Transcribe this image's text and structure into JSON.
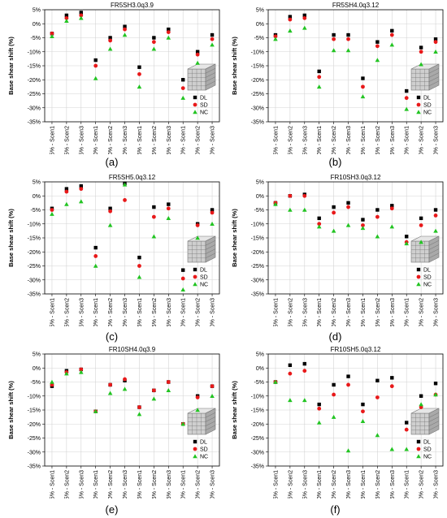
{
  "figure": {
    "legend_symbols": [
      "■",
      "●",
      "▲"
    ]
  },
  "chart_data": [
    {
      "type": "scatter",
      "label": "(a)",
      "title": "FR5SH3.0q3.9",
      "ylabel": "Base shear shift (%)",
      "ylim": [
        -35,
        5
      ],
      "yticks": [
        5,
        0,
        -5,
        -10,
        -15,
        -20,
        -25,
        -30,
        -35
      ],
      "ytick_labels": [
        "5%",
        "0%",
        "-5%",
        "-10%",
        "-15%",
        "-20%",
        "-25%",
        "-30%",
        "-35%"
      ],
      "categories": [
        "5% - Scen1",
        "5% - Scen2",
        "5% - Scen3",
        "10% - Scen1",
        "10% - Scen2",
        "10% - Scen3",
        "15% - Scen1",
        "15% - Scen2",
        "15% - Scen3",
        "20% - Scen1",
        "20% - Scen2",
        "20% - Scen3"
      ],
      "grid": true,
      "legend_position": "bottom-right",
      "series": [
        {
          "name": "DL",
          "color": "#000000",
          "marker": "square",
          "values": [
            -3.5,
            3,
            4,
            -13,
            -5,
            -1,
            -15.5,
            -5,
            -2,
            -20,
            -10,
            -4
          ]
        },
        {
          "name": "SD",
          "color": "#e8191a",
          "marker": "circle",
          "values": [
            -3.5,
            2,
            3,
            -15,
            -6,
            -2,
            -18,
            -6.5,
            -3,
            -23,
            -11,
            -5.5
          ]
        },
        {
          "name": "NC",
          "color": "#22c422",
          "marker": "triangle",
          "values": [
            -4.5,
            1,
            2,
            -19.5,
            -9,
            -4,
            -22.5,
            -9,
            -5,
            -26.5,
            -14,
            -7.5
          ]
        }
      ]
    },
    {
      "type": "scatter",
      "label": "(b)",
      "title": "FR5SH4.0q3.12",
      "ylabel": "Base shear shift (%)",
      "ylim": [
        -35,
        5
      ],
      "yticks": [
        5,
        0,
        -5,
        -10,
        -15,
        -20,
        -25,
        -30,
        -35
      ],
      "ytick_labels": [
        "5%",
        "0%",
        "-5%",
        "-10%",
        "-15%",
        "-20%",
        "-25%",
        "-30%",
        "-35%"
      ],
      "categories": [
        "5% - Scen1",
        "5% - Scen2",
        "5% - Scen3",
        "10% - Scen1",
        "10% - Scen2",
        "10% - Scen3",
        "15% - Scen1",
        "15% - Scen2",
        "15% - Scen3",
        "20% - Scen1",
        "20% - Scen2",
        "20% - Scen3"
      ],
      "grid": true,
      "legend_position": "bottom-right",
      "series": [
        {
          "name": "DL",
          "color": "#000000",
          "marker": "square",
          "values": [
            -4,
            2.5,
            3,
            -17,
            -4,
            -4,
            -19.5,
            -6.5,
            -2.5,
            -24,
            -8.5,
            -5.5
          ]
        },
        {
          "name": "SD",
          "color": "#e8191a",
          "marker": "circle",
          "values": [
            -4.5,
            1.5,
            2,
            -19,
            -5.5,
            -5.5,
            -22.5,
            -8,
            -4,
            -26.5,
            -10,
            -6.5
          ]
        },
        {
          "name": "NC",
          "color": "#22c422",
          "marker": "triangle",
          "values": [
            -5.5,
            -2.5,
            -1.5,
            -22.5,
            -9.5,
            -9.5,
            -26,
            -13,
            -7.5,
            -30.5,
            -14.5,
            -10
          ]
        }
      ]
    },
    {
      "type": "scatter",
      "label": "(c)",
      "title": "FR5SH5.0q3.12",
      "ylabel": "Base shear shift (%)",
      "ylim": [
        -35,
        5
      ],
      "yticks": [
        5,
        0,
        -5,
        -10,
        -15,
        -20,
        -25,
        -30,
        -35
      ],
      "ytick_labels": [
        "5%",
        "0%",
        "-5%",
        "-10%",
        "-15%",
        "-20%",
        "-25%",
        "-30%",
        "-35%"
      ],
      "categories": [
        "5% - Scen1",
        "5% - Scen2",
        "5% - Scen3",
        "10% - Scen1",
        "10% - Scen2",
        "10% - Scen3",
        "15% - Scen1",
        "15% - Scen2",
        "15% - Scen3",
        "20% - Scen1",
        "20% - Scen2",
        "20% - Scen3"
      ],
      "grid": true,
      "legend_position": "bottom-right",
      "series": [
        {
          "name": "DL",
          "color": "#000000",
          "marker": "square",
          "values": [
            -4.5,
            2.5,
            3.5,
            -18.5,
            -4.5,
            4.5,
            -22,
            -4,
            -3,
            -26.5,
            -10,
            -5
          ]
        },
        {
          "name": "SD",
          "color": "#e8191a",
          "marker": "circle",
          "values": [
            -5,
            1.5,
            2.5,
            -21.5,
            -5.5,
            -1.5,
            -25,
            -7.5,
            -4.5,
            -29.5,
            -10.5,
            -6
          ]
        },
        {
          "name": "NC",
          "color": "#22c422",
          "marker": "triangle",
          "values": [
            -6.5,
            -3,
            -2,
            -25,
            -10.5,
            4,
            -29,
            -14.5,
            -8,
            -33.5,
            -15,
            -10
          ]
        }
      ]
    },
    {
      "type": "scatter",
      "label": "(d)",
      "title": "FR10SH3.0q3.12",
      "ylabel": "Base shear shift (%)",
      "ylim": [
        -35,
        5
      ],
      "yticks": [
        5,
        0,
        -5,
        -10,
        -15,
        -20,
        -25,
        -30,
        -35
      ],
      "ytick_labels": [
        "5%",
        "0%",
        "-5%",
        "-10%",
        "-15%",
        "-20%",
        "-25%",
        "-30%",
        "-35%"
      ],
      "categories": [
        "5% - Scen1",
        "5% - Scen2",
        "5% - Scen3",
        "10% - Scen1",
        "10% - Scen2",
        "10% - Scen3",
        "15% - Scen1",
        "15% - Scen2",
        "15% - Scen3",
        "20% - Scen1",
        "20% - Scen2",
        "20% - Scen3"
      ],
      "grid": true,
      "legend_position": "bottom-right",
      "series": [
        {
          "name": "DL",
          "color": "#000000",
          "marker": "square",
          "values": [
            -2.5,
            0,
            0.5,
            -8,
            -4,
            -2.5,
            -8.5,
            -5,
            -3.5,
            -14.5,
            -8,
            -5
          ]
        },
        {
          "name": "SD",
          "color": "#e8191a",
          "marker": "circle",
          "values": [
            -2.5,
            0,
            0,
            -10,
            -6,
            -4,
            -10.5,
            -7.5,
            -4.5,
            -16.5,
            -10.5,
            -7
          ]
        },
        {
          "name": "NC",
          "color": "#22c422",
          "marker": "triangle",
          "values": [
            -3,
            -5,
            -5,
            -11,
            -12.5,
            -10.5,
            -11.5,
            -14.5,
            -11,
            -17,
            -16.5,
            -12.5
          ]
        }
      ]
    },
    {
      "type": "scatter",
      "label": "(e)",
      "title": "FR10SH4.0q3.9",
      "ylabel": "Base shear shift (%)",
      "ylim": [
        -35,
        5
      ],
      "yticks": [
        5,
        0,
        -5,
        -10,
        -15,
        -20,
        -25,
        -30,
        -35
      ],
      "ytick_labels": [
        "5%",
        "0%",
        "-5%",
        "-10%",
        "-15%",
        "-20%",
        "-25%",
        "-30%",
        "-35%"
      ],
      "categories": [
        "5% - Scen1",
        "5% - Scen2",
        "5% - Scen3",
        "10% - Scen1",
        "10% - Scen2",
        "10% - Scen3",
        "15% - Scen1",
        "15% - Scen2",
        "15% - Scen3",
        "20% - Scen1",
        "20% - Scen2",
        "20% - Scen3"
      ],
      "grid": true,
      "legend_position": "bottom-right",
      "series": [
        {
          "name": "DL",
          "color": "#000000",
          "marker": "square",
          "values": [
            -6.5,
            -1,
            -0.5,
            -15.5,
            -6,
            -4.5,
            -14,
            -8,
            -5,
            -20,
            -10,
            -6.5
          ]
        },
        {
          "name": "SD",
          "color": "#e8191a",
          "marker": "circle",
          "values": [
            -6,
            -1.5,
            -0.5,
            -15.5,
            -6,
            -4,
            -14,
            -8,
            -5,
            -20,
            -10.5,
            -6.5
          ]
        },
        {
          "name": "NC",
          "color": "#22c422",
          "marker": "triangle",
          "values": [
            -5,
            -2,
            -1.5,
            -15.5,
            -9,
            -7.5,
            -16.5,
            -11,
            -8,
            -20,
            -15,
            -10
          ]
        }
      ]
    },
    {
      "type": "scatter",
      "label": "(f)",
      "title": "FR10SH5.0q3.12",
      "ylabel": "Base shear shift (%)",
      "ylim": [
        -35,
        5
      ],
      "yticks": [
        5,
        0,
        -5,
        -10,
        -15,
        -20,
        -25,
        -30,
        -35
      ],
      "ytick_labels": [
        "5%",
        "0%",
        "-5%",
        "-10%",
        "-15%",
        "-20%",
        "-25%",
        "-30%",
        "-35%"
      ],
      "categories": [
        "5% - Scen1",
        "5% - Scen2",
        "5% - Scen3",
        "10% - Scen1",
        "10% - Scen2",
        "10% - Scen3",
        "15% - Scen1",
        "15% - Scen2",
        "15% - Scen3",
        "20% - Scen1",
        "20% - Scen2",
        "20% - Scen3"
      ],
      "grid": true,
      "legend_position": "bottom-right",
      "series": [
        {
          "name": "DL",
          "color": "#000000",
          "marker": "square",
          "values": [
            -5,
            1,
            1.5,
            -13,
            -6,
            -3,
            -13,
            -4.5,
            -3.5,
            -19.5,
            -10,
            -5.5
          ]
        },
        {
          "name": "SD",
          "color": "#e8191a",
          "marker": "circle",
          "values": [
            -5,
            -2,
            -1,
            -14.5,
            -9.5,
            -6,
            -15.5,
            -10.5,
            -6.5,
            -22,
            -14,
            -9.5
          ]
        },
        {
          "name": "NC",
          "color": "#22c422",
          "marker": "triangle",
          "values": [
            -5,
            -11.5,
            -11.5,
            -19.5,
            -17.5,
            -29.5,
            -19,
            -24,
            -29,
            -29,
            -13,
            -9.5
          ]
        }
      ]
    }
  ]
}
